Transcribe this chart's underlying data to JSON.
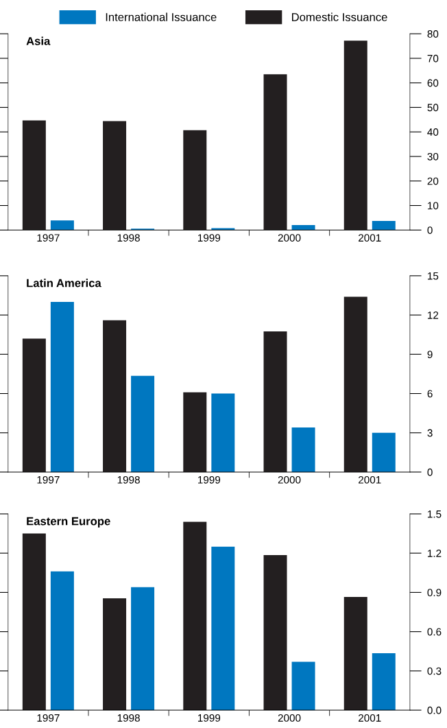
{
  "chart_data": [
    {
      "type": "bar",
      "title": "Asia",
      "categories": [
        "1997",
        "1998",
        "1999",
        "2000",
        "2001"
      ],
      "legend": "top",
      "series": [
        {
          "name": "Domestic Issuance",
          "color": "#231f20",
          "values": [
            44.7,
            44.4,
            40.7,
            63.5,
            77.2
          ]
        },
        {
          "name": "International Issuance",
          "color": "#0077c0",
          "values": [
            3.9,
            0.6,
            0.8,
            2.0,
            3.7
          ]
        }
      ],
      "ylim": [
        0,
        80
      ],
      "yticks": [
        0,
        10,
        20,
        30,
        40,
        50,
        60,
        70,
        80
      ]
    },
    {
      "type": "bar",
      "title": "Latin America",
      "categories": [
        "1997",
        "1998",
        "1999",
        "2000",
        "2001"
      ],
      "series": [
        {
          "color": "#231f20",
          "values": [
            10.2,
            11.6,
            6.1,
            10.75,
            13.4
          ]
        },
        {
          "color": "#0077c0",
          "values": [
            13.0,
            7.35,
            6.0,
            3.4,
            3.0
          ]
        }
      ],
      "ylim": [
        0,
        15
      ],
      "yticks": [
        0,
        3,
        6,
        9,
        12,
        15
      ]
    },
    {
      "type": "bar",
      "title": "Eastern Europe",
      "categories": [
        "1997",
        "1998",
        "1999",
        "2000",
        "2001"
      ],
      "series": [
        {
          "color": "#231f20",
          "values": [
            1.35,
            0.855,
            1.44,
            1.185,
            0.865
          ]
        },
        {
          "color": "#0077c0",
          "values": [
            1.06,
            0.94,
            1.25,
            0.37,
            0.435
          ]
        }
      ],
      "ylim": [
        0,
        1.5
      ],
      "yticks": [
        {
          "value": 0,
          "label": "0.0"
        },
        {
          "value": 0.3,
          "label": "0.3"
        },
        {
          "value": 0.6,
          "label": "0.6"
        },
        {
          "value": 0.9,
          "label": "0.9"
        },
        {
          "value": 1.2,
          "label": "1.2"
        },
        {
          "value": 1.5,
          "label": "1.5"
        }
      ]
    }
  ]
}
